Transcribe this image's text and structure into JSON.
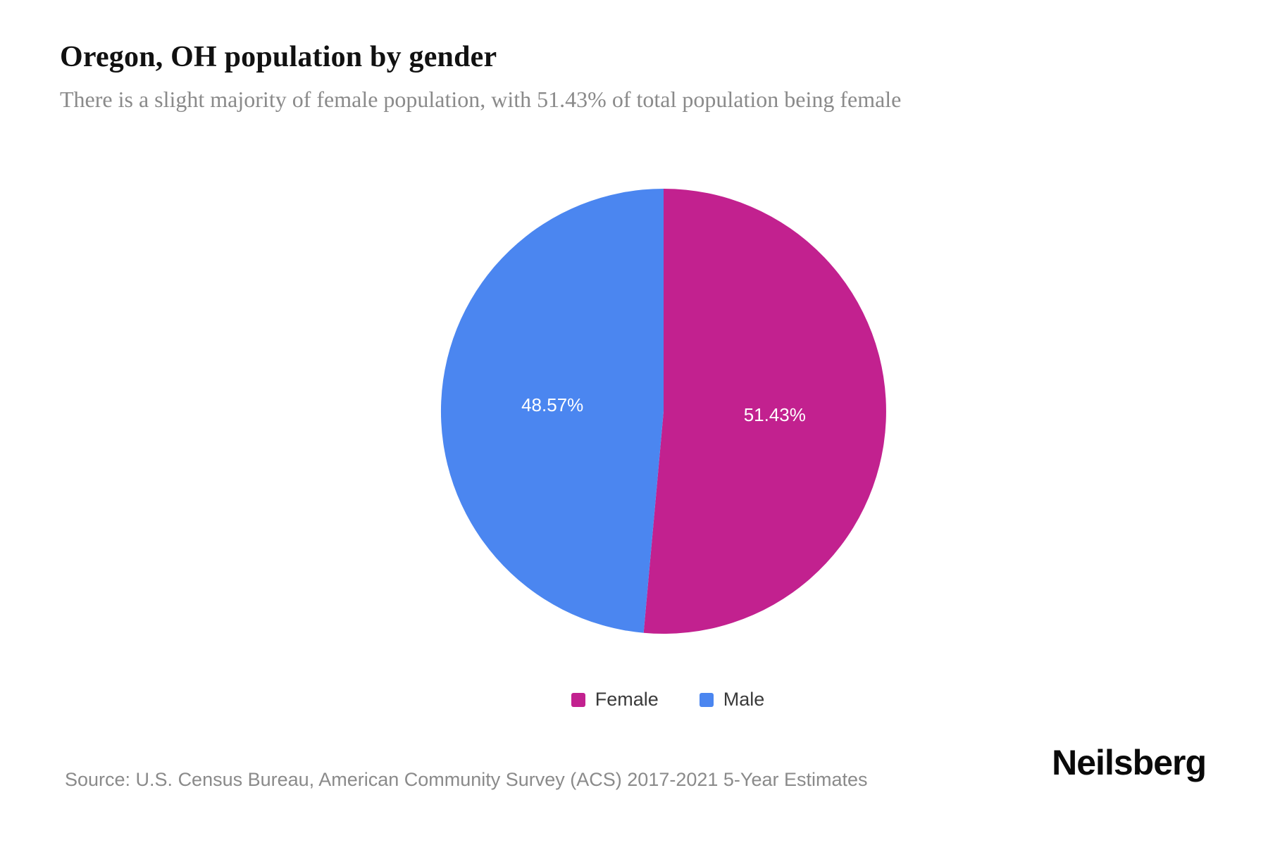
{
  "header": {
    "title": "Oregon, OH population by gender",
    "subtitle": "There is a slight majority of female population, with 51.43% of total population being female"
  },
  "chart_data": {
    "type": "pie",
    "title": "Oregon, OH population by gender",
    "unit": "percent of total population",
    "start_angle_deg": 0,
    "direction": "clockwise",
    "label_color": "#ffffff",
    "legend_position": "bottom",
    "slices": [
      {
        "label": "Female",
        "value": 51.43,
        "display": "51.43%",
        "color": "#c2218f"
      },
      {
        "label": "Male",
        "value": 48.57,
        "display": "48.57%",
        "color": "#4b86f0"
      }
    ]
  },
  "legend": {
    "items": [
      {
        "label": "Female",
        "color": "#c2218f"
      },
      {
        "label": "Male",
        "color": "#4b86f0"
      }
    ]
  },
  "source": {
    "text": "Source: U.S. Census Bureau, American Community Survey (ACS) 2017-2021 5-Year Estimates"
  },
  "branding": {
    "logo_text": "Neilsberg"
  }
}
